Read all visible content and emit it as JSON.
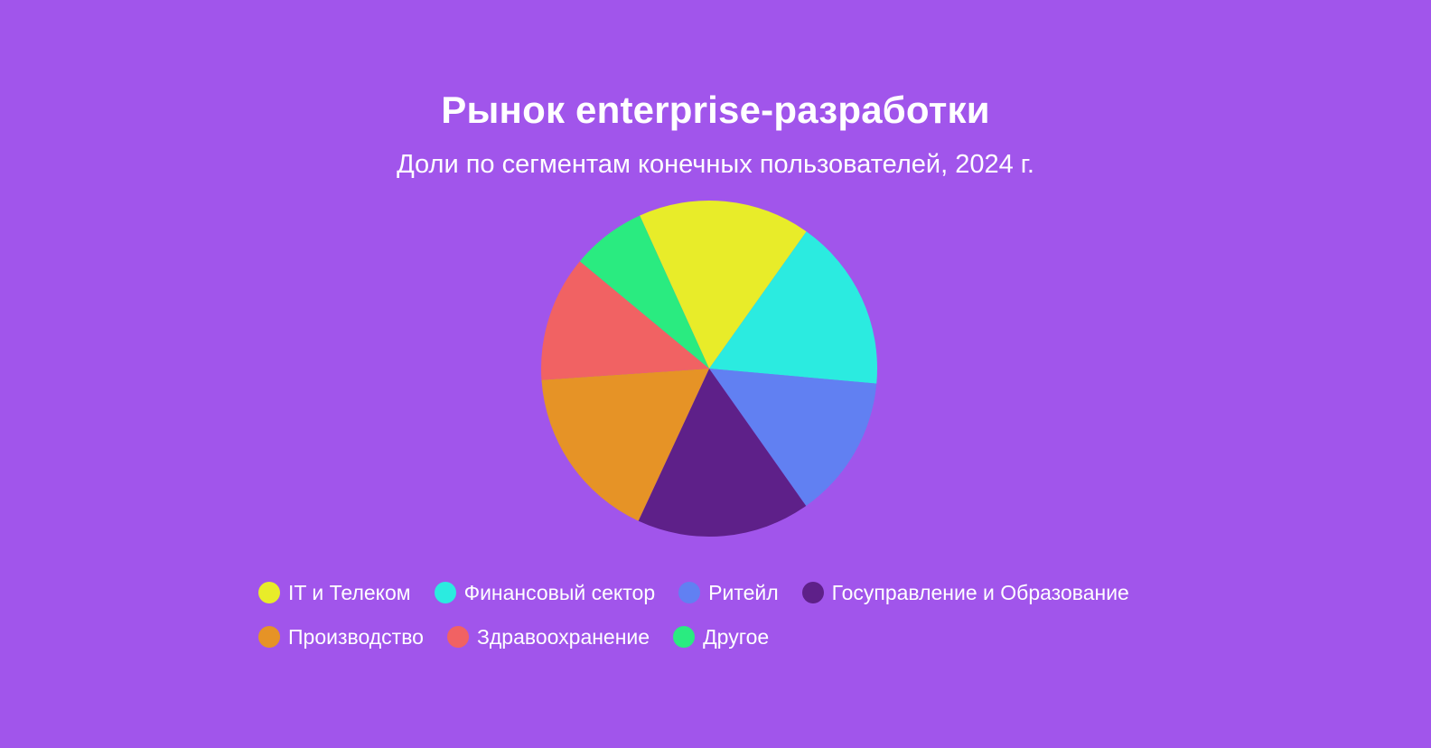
{
  "background_color": "#a155eb",
  "chart_data": {
    "type": "pie",
    "title": "Рынок enterprise-разработки",
    "subtitle": "Доли по сегментам конечных пользователей, 2024 г.",
    "start_angle_deg": 335.6,
    "direction": "clockwise",
    "categories": [
      "IT и Телеком",
      "Финансовый сектор",
      "Ритейл",
      "Госуправление и Образование",
      "Производство",
      "Здравоохранение",
      "Другое"
    ],
    "values": [
      16.6,
      16.6,
      13.8,
      16.7,
      17.0,
      12.1,
      7.2
    ],
    "unit": "%",
    "colors": [
      "#e8ec29",
      "#2bebe0",
      "#6180f2",
      "#5e2089",
      "#e69326",
      "#f16263",
      "#2aeb80"
    ],
    "legend_position": "bottom",
    "data_labels": false
  },
  "legend": {
    "rows": [
      [
        0,
        1,
        2,
        3
      ],
      [
        4,
        5,
        6
      ]
    ]
  }
}
